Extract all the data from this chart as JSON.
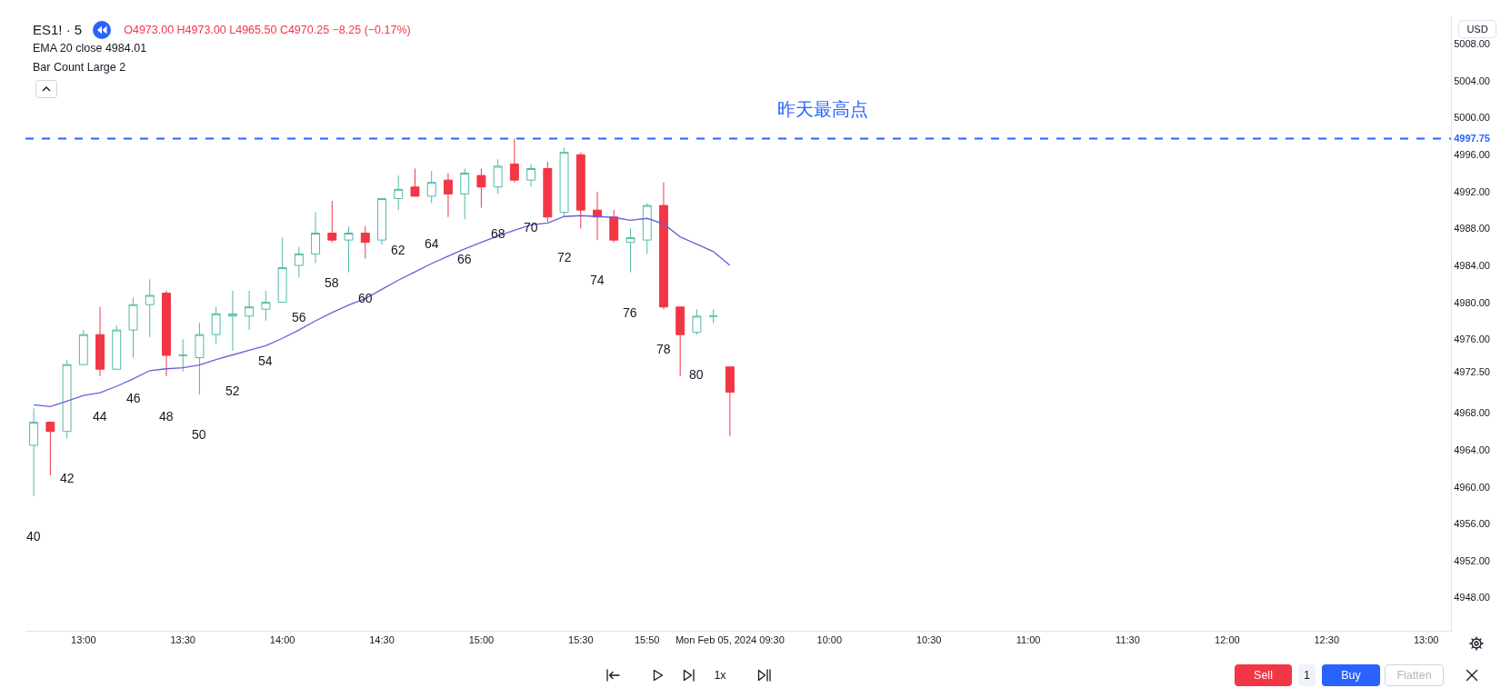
{
  "chart_data": {
    "type": "candlestick",
    "title": "ES1! · 5",
    "subtitle": "O4973.00 H4973.00 L4965.50 C4970.25 −8.25 (−0.17%)",
    "ylabel": "USD",
    "categories": [
      null,
      null,
      null,
      "13:00",
      null,
      null,
      null,
      null,
      null,
      "13:30",
      null,
      null,
      null,
      null,
      null,
      "14:00",
      null,
      null,
      null,
      null,
      null,
      "14:30",
      null,
      null,
      null,
      null,
      null,
      "15:00",
      null,
      null,
      null,
      null,
      null,
      "15:30",
      null,
      null,
      null,
      "15:50",
      null,
      null,
      null,
      null,
      "Mon Feb 05, 2024 09:30",
      null,
      null,
      null,
      null,
      null,
      "10:00",
      null,
      null,
      null,
      null,
      null,
      "10:30",
      null,
      null,
      null,
      null,
      null,
      "11:00",
      null,
      null,
      null,
      null,
      null,
      "11:30",
      null,
      null,
      null,
      null,
      null,
      "12:00",
      null,
      null,
      null,
      null,
      null,
      "12:30",
      null,
      null,
      null,
      null,
      null,
      "13:00",
      null
    ],
    "ohlc": [
      [
        4964.5,
        4968.5,
        4959,
        4967
      ],
      [
        4967,
        4967,
        4961.25,
        4966
      ],
      [
        4966,
        4973.75,
        4965.25,
        4973.25
      ],
      [
        4973.25,
        4977,
        4973.25,
        4976.5
      ],
      [
        4976.5,
        4979.5,
        4972,
        4972.75
      ],
      [
        4972.75,
        4977.5,
        4972.75,
        4977
      ],
      [
        4977,
        4980.5,
        4974,
        4979.75
      ],
      [
        4979.75,
        4982.5,
        4976.25,
        4980.75
      ],
      [
        4981,
        4981.25,
        4972,
        4974.25
      ],
      [
        4974.25,
        4976,
        4972.5,
        4974.25
      ],
      [
        4974,
        4977.75,
        4970,
        4976.5
      ],
      [
        4976.5,
        4979.5,
        4975.5,
        4978.75
      ],
      [
        4978.5,
        4981.25,
        4974.75,
        4978.75
      ],
      [
        4978.5,
        4981.25,
        4977,
        4979.5
      ],
      [
        4979.25,
        4981.25,
        4978,
        4980
      ],
      [
        4980,
        4987,
        4980,
        4983.75
      ],
      [
        4984,
        4986,
        4982.75,
        4985.25
      ],
      [
        4985.25,
        4989.75,
        4984.25,
        4987.5
      ],
      [
        4987.5,
        4991,
        4986.5,
        4986.75
      ],
      [
        4986.75,
        4988.25,
        4983.25,
        4987.5
      ],
      [
        4987.5,
        4988.25,
        4984.75,
        4986.5
      ],
      [
        4986.75,
        4991.25,
        4986.25,
        4991.25
      ],
      [
        4991.25,
        4993.75,
        4990,
        4992.25
      ],
      [
        4992.5,
        4994.5,
        4991.5,
        4991.5
      ],
      [
        4991.5,
        4994.25,
        4990.75,
        4993
      ],
      [
        4993.25,
        4994,
        4989.25,
        4991.75
      ],
      [
        4991.75,
        4994.5,
        4989,
        4994
      ],
      [
        4993.75,
        4994.5,
        4990.25,
        4992.5
      ],
      [
        4992.5,
        4995.5,
        4991.75,
        4994.75
      ],
      [
        4995,
        4997.75,
        4993,
        4993.25
      ],
      [
        4993.25,
        4995,
        4992.5,
        4994.5
      ],
      [
        4994.5,
        4995.25,
        4988.75,
        4989.25
      ],
      [
        4989.75,
        4996.75,
        4989.25,
        4996.25
      ],
      [
        4996,
        4996.25,
        4988,
        4990
      ],
      [
        4990,
        4992,
        4986.75,
        4989.25
      ],
      [
        4989.25,
        4990,
        4986.5,
        4986.75
      ],
      [
        4986.5,
        4988,
        4983.25,
        4987
      ],
      [
        4986.75,
        4990.75,
        4985.25,
        4990.5
      ],
      [
        4990.5,
        4993,
        4979.25,
        4979.5
      ],
      [
        4979.5,
        4979.5,
        4972,
        4976.5
      ],
      [
        4976.75,
        4979.25,
        4976.5,
        4978.5
      ],
      [
        4978.5,
        4979.25,
        4977.75,
        4978.5
      ],
      [
        4973,
        4973,
        4965.5,
        4970.25
      ],
      null,
      null,
      null,
      null,
      null,
      null,
      null,
      null,
      null,
      null,
      null,
      null,
      null,
      null,
      null,
      null,
      null,
      null,
      null,
      null,
      null,
      null,
      null,
      null,
      null,
      null,
      null,
      null,
      null,
      null,
      null,
      null,
      null,
      null,
      null,
      null,
      null,
      null,
      null,
      null,
      null,
      null,
      null
    ],
    "colors": [
      "#52b9a6",
      "#f23645",
      "#52b9a6",
      "#52b9a6",
      "#f23645",
      "#52b9a6",
      "#52b9a6",
      "#52b9a6",
      "#f23645",
      "#52b9a6",
      "#52b9a6",
      "#52b9a6",
      "#52b9a6",
      "#52b9a6",
      "#52b9a6",
      "#52b9a6",
      "#52b9a6",
      "#52b9a6",
      "#f23645",
      "#52b9a6",
      "#f23645",
      "#52b9a6",
      "#52b9a6",
      "#f23645",
      "#52b9a6",
      "#f23645",
      "#52b9a6",
      "#f23645",
      "#52b9a6",
      "#f23645",
      "#52b9a6",
      "#f23645",
      "#52b9a6",
      "#f23645",
      "#f23645",
      "#f23645",
      "#52b9a6",
      "#52b9a6",
      "#f23645",
      "#f23645",
      "#52b9a6",
      "#52b9a6",
      "#f23645",
      null,
      null,
      null,
      null,
      null,
      null,
      null,
      null,
      null,
      null,
      null,
      null,
      null,
      null,
      null,
      null,
      null,
      null,
      null,
      null,
      null,
      null,
      null,
      null,
      null,
      null,
      null,
      null,
      null,
      null,
      null,
      null,
      null,
      null,
      null,
      null,
      null,
      null,
      null,
      null,
      null,
      null,
      null
    ],
    "value_labels": [
      "40",
      null,
      "42",
      null,
      "44",
      null,
      "46",
      null,
      "48",
      null,
      "50",
      null,
      "52",
      null,
      "54",
      null,
      "56",
      null,
      "58",
      null,
      "60",
      null,
      "62",
      null,
      "64",
      null,
      "66",
      null,
      "68",
      null,
      "70",
      null,
      "72",
      null,
      "74",
      null,
      "76",
      null,
      "78",
      null,
      "80",
      null,
      null,
      null,
      null,
      null,
      null,
      null,
      null,
      null,
      null,
      null,
      null,
      null,
      null,
      null,
      null,
      null,
      null,
      null,
      null,
      null,
      null,
      null,
      null,
      null,
      null,
      null,
      null,
      null,
      null,
      null,
      null,
      null,
      null,
      null,
      null,
      null,
      null,
      null,
      null,
      null,
      null,
      null,
      null,
      null
    ],
    "series": [
      {
        "type": "line",
        "color": "#6a5fd8",
        "values": [
          4968.9,
          4968.7,
          4969.3,
          4969.9,
          4970.2,
          4970.9,
          4971.7,
          4972.6,
          4972.8,
          4972.9,
          4973.2,
          4973.8,
          4974.3,
          4974.8,
          4975.3,
          4976.1,
          4977.0,
          4978.0,
          4978.9,
          4979.7,
          4980.4,
          4981.4,
          4982.4,
          4983.3,
          4984.2,
          4985.0,
          4985.8,
          4986.5,
          4987.2,
          4987.8,
          4988.4,
          4988.6,
          4989.3,
          4989.4,
          4989.3,
          4989.2,
          4988.9,
          4989.1,
          4988.5,
          4987.1,
          4986.3,
          4985.5,
          4984.0,
          null,
          null,
          null,
          null,
          null,
          null,
          null,
          null,
          null,
          null,
          null,
          null,
          null,
          null,
          null,
          null,
          null,
          null,
          null,
          null,
          null,
          null,
          null,
          null,
          null,
          null,
          null,
          null,
          null,
          null,
          null,
          null,
          null,
          null,
          null,
          null,
          null,
          null,
          null,
          null,
          null,
          null,
          null
        ]
      }
    ],
    "ylim": [
      4944.4,
      5010.9
    ],
    "yticks": [
      {
        "value": 4948,
        "label": "4948.00"
      },
      {
        "value": 4952,
        "label": "4952.00"
      },
      {
        "value": 4956,
        "label": "4956.00"
      },
      {
        "value": 4960,
        "label": "4960.00"
      },
      {
        "value": 4964,
        "label": "4964.00"
      },
      {
        "value": 4968,
        "label": "4968.00"
      },
      {
        "value": 4972.5,
        "label": "4972.50"
      },
      {
        "value": 4976,
        "label": "4976.00"
      },
      {
        "value": 4980,
        "label": "4980.00"
      },
      {
        "value": 4984,
        "label": "4984.00"
      },
      {
        "value": 4988,
        "label": "4988.00"
      },
      {
        "value": 4992,
        "label": "4992.00"
      },
      {
        "value": 4996,
        "label": "4996.00"
      },
      4997.75,
      {
        "value": 5000,
        "label": "5000.00"
      },
      {
        "value": 5004,
        "label": "5004.00"
      },
      {
        "value": 5008,
        "label": "5008.00"
      }
    ],
    "ref_lines": [
      {
        "axis": "y",
        "value": 4997.75,
        "label": "昨天最高点",
        "color": "#2962ff",
        "line_style": "dashed"
      }
    ],
    "annotations": [
      "EMA 20 close 4984.01",
      "Bar Count Large 2",
      "1x",
      "Sell",
      "1",
      "Buy",
      "Flatten"
    ]
  }
}
